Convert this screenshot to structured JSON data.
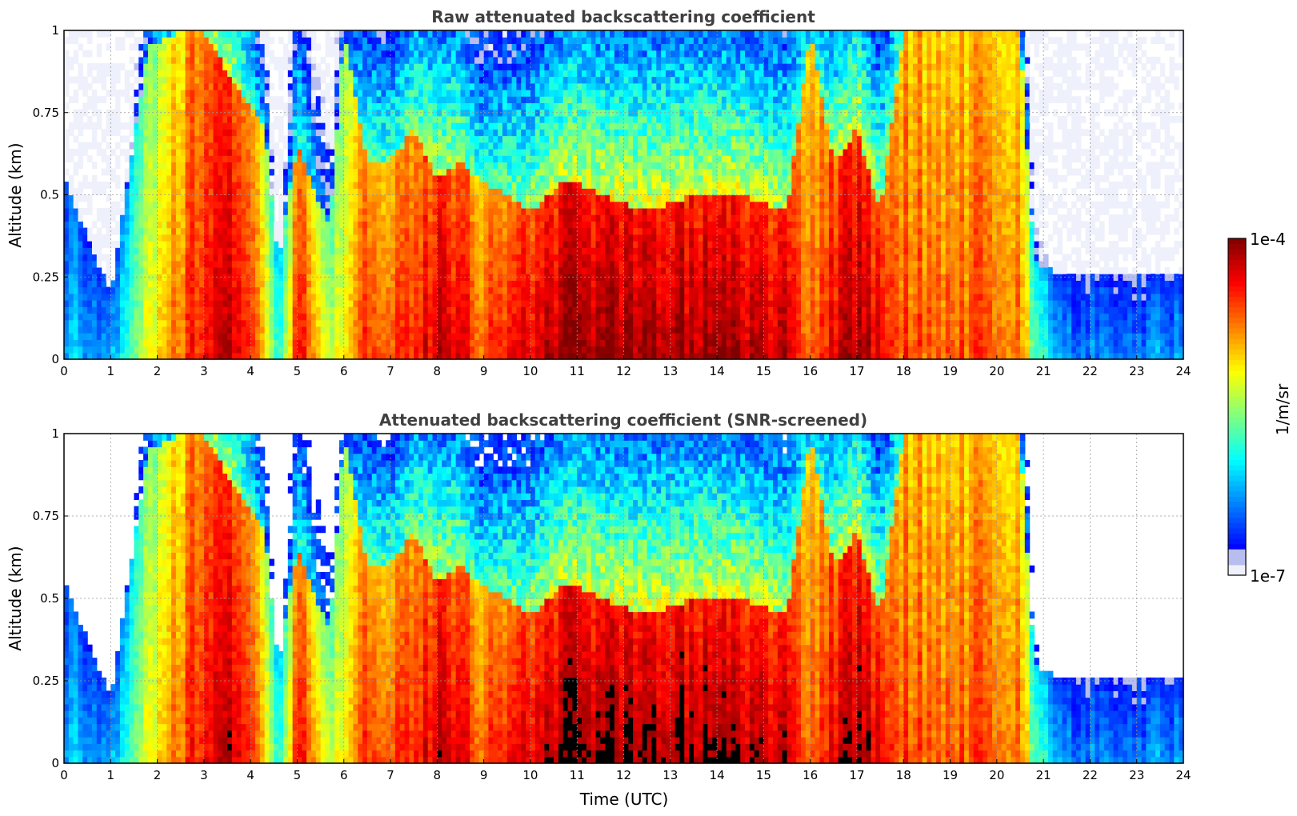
{
  "chart_data": [
    {
      "type": "heatmap",
      "title": "Raw attenuated backscattering coefficient",
      "xlabel": "",
      "ylabel": "Altitude (km)",
      "xlim": [
        0,
        24
      ],
      "ylim": [
        0,
        1
      ],
      "xticks": [
        "0",
        "1",
        "2",
        "3",
        "4",
        "5",
        "6",
        "7",
        "8",
        "9",
        "10",
        "11",
        "12",
        "13",
        "14",
        "15",
        "16",
        "17",
        "18",
        "19",
        "20",
        "21",
        "22",
        "23",
        "24"
      ],
      "yticks": [
        "0",
        "0.25",
        "0.5",
        "0.75",
        "1"
      ],
      "grid": true,
      "colormap": "jet",
      "log_scale": true,
      "x_hours": [
        0,
        1,
        1.8,
        2.5,
        3.0,
        3.6,
        4.3,
        4.6,
        5.0,
        5.7,
        6.0,
        6.5,
        7.0,
        7.5,
        8.0,
        8.5,
        8.9,
        9.5,
        10.0,
        10.8,
        11.5,
        12.5,
        13.5,
        14.5,
        15.5,
        16.0,
        16.5,
        17.0,
        17.5,
        18.0,
        19.0,
        20.0,
        20.5,
        20.8,
        21.5,
        22.5,
        23.5
      ],
      "layer_top_km": [
        0.55,
        0.2,
        0.95,
        1.0,
        1.0,
        0.85,
        0.7,
        0.3,
        0.65,
        0.4,
        1.0,
        0.6,
        0.6,
        0.7,
        0.55,
        0.6,
        0.55,
        0.5,
        0.45,
        0.55,
        0.5,
        0.45,
        0.5,
        0.5,
        0.45,
        1.0,
        0.6,
        0.7,
        0.45,
        1.0,
        1.0,
        1.0,
        1.0,
        0.3,
        0.25,
        0.25,
        0.25
      ],
      "log10_beta_core": [
        -6.2,
        -6.2,
        -5.2,
        -4.7,
        -4.3,
        -4.2,
        -5.0,
        -6.0,
        -4.4,
        -5.4,
        -5.3,
        -4.5,
        -4.6,
        -4.4,
        -4.2,
        -4.3,
        -4.6,
        -4.4,
        -4.3,
        -4.1,
        -4.1,
        -4.05,
        -4.1,
        -4.1,
        -4.2,
        -4.8,
        -4.3,
        -4.1,
        -4.3,
        -4.6,
        -4.7,
        -4.6,
        -4.7,
        -5.6,
        -6.3,
        -6.3,
        -6.3
      ]
    },
    {
      "type": "heatmap",
      "title": "Attenuated backscattering coefficient (SNR-screened)",
      "xlabel": "Time (UTC)",
      "ylabel": "Altitude (km)",
      "xlim": [
        0,
        24
      ],
      "ylim": [
        0,
        1
      ],
      "xticks": [
        "0",
        "1",
        "2",
        "3",
        "4",
        "5",
        "6",
        "7",
        "8",
        "9",
        "10",
        "11",
        "12",
        "13",
        "14",
        "15",
        "16",
        "17",
        "18",
        "19",
        "20",
        "21",
        "22",
        "23",
        "24"
      ],
      "yticks": [
        "0",
        "0.25",
        "0.5",
        "0.75",
        "1"
      ],
      "grid": true,
      "colormap": "jet",
      "log_scale": true,
      "screened": true,
      "x_hours": [
        0,
        1,
        1.8,
        2.5,
        3.0,
        3.6,
        4.3,
        4.6,
        5.0,
        5.7,
        6.0,
        6.5,
        7.0,
        7.5,
        8.0,
        8.5,
        8.9,
        9.5,
        10.0,
        10.8,
        11.5,
        12.5,
        13.5,
        14.5,
        15.5,
        16.0,
        16.5,
        17.0,
        17.5,
        18.0,
        19.0,
        20.0,
        20.5,
        20.8,
        21.5,
        22.5,
        23.5
      ],
      "layer_top_km": [
        0.55,
        0.2,
        0.95,
        1.0,
        1.0,
        0.85,
        0.7,
        0.3,
        0.65,
        0.4,
        1.0,
        0.6,
        0.6,
        0.7,
        0.55,
        0.6,
        0.55,
        0.5,
        0.45,
        0.55,
        0.5,
        0.45,
        0.5,
        0.5,
        0.45,
        1.0,
        0.6,
        0.7,
        0.45,
        1.0,
        1.0,
        1.0,
        1.0,
        0.3,
        0.25,
        0.25,
        0.25
      ],
      "log10_beta_core": [
        -6.2,
        -6.2,
        -5.2,
        -4.7,
        -4.3,
        -4.2,
        -5.0,
        -6.0,
        -4.4,
        -5.4,
        -5.3,
        -4.5,
        -4.6,
        -4.4,
        -4.2,
        -4.3,
        -4.6,
        -4.4,
        -4.3,
        -4.1,
        -4.1,
        -4.05,
        -4.1,
        -4.1,
        -4.2,
        -4.8,
        -4.3,
        -4.1,
        -4.3,
        -4.6,
        -4.7,
        -4.6,
        -4.7,
        -5.6,
        -6.3,
        -6.3,
        -6.3
      ]
    }
  ],
  "colorbar": {
    "label": "1/m/sr",
    "max_label": "1e-4",
    "min_label": "1e-7",
    "min_log10": -7,
    "max_log10": -4
  }
}
